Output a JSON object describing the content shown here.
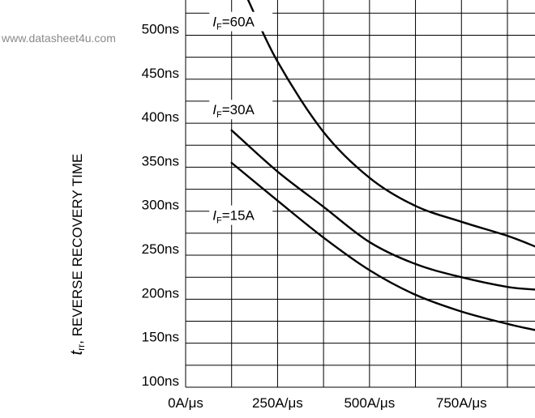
{
  "watermark": "www.datasheet4u.com",
  "chart_data": {
    "type": "line",
    "title": "",
    "ylabel": {
      "symbol": "t",
      "subscript": "rr",
      "text": ", REVERSE RECOVERY TIME"
    },
    "xlabel": "",
    "ylim": [
      100,
      540
    ],
    "xlim": [
      0,
      950
    ],
    "y_ticks": [
      {
        "value": 100,
        "label": "100ns"
      },
      {
        "value": 150,
        "label": "150ns"
      },
      {
        "value": 200,
        "label": "200ns"
      },
      {
        "value": 250,
        "label": "250ns"
      },
      {
        "value": 300,
        "label": "300ns"
      },
      {
        "value": 350,
        "label": "350ns"
      },
      {
        "value": 400,
        "label": "400ns"
      },
      {
        "value": 450,
        "label": "450ns"
      },
      {
        "value": 500,
        "label": "500ns"
      }
    ],
    "x_ticks": [
      {
        "value": 0,
        "label": "0A/μs"
      },
      {
        "value": 250,
        "label": "250A/μs"
      },
      {
        "value": 500,
        "label": "500A/μs"
      },
      {
        "value": 750,
        "label": "750A/μs"
      }
    ],
    "y_grid_step": 25,
    "x_grid_step": 125,
    "grid": true,
    "series": [
      {
        "name": "60A",
        "label_prefix": "I",
        "label_sub": "F",
        "label_eq": "=60A",
        "label_anchor": {
          "x": 60,
          "y": 510
        },
        "points": [
          [
            170,
            540
          ],
          [
            250,
            470
          ],
          [
            375,
            390
          ],
          [
            500,
            338
          ],
          [
            625,
            306
          ],
          [
            750,
            288
          ],
          [
            875,
            272
          ],
          [
            950,
            260
          ]
        ]
      },
      {
        "name": "30A",
        "label_prefix": "I",
        "label_sub": "F",
        "label_eq": "=30A",
        "label_anchor": {
          "x": 60,
          "y": 410
        },
        "points": [
          [
            125,
            392
          ],
          [
            250,
            345
          ],
          [
            375,
            305
          ],
          [
            500,
            265
          ],
          [
            625,
            240
          ],
          [
            750,
            225
          ],
          [
            875,
            214
          ],
          [
            950,
            211
          ]
        ]
      },
      {
        "name": "15A",
        "label_prefix": "I",
        "label_sub": "F",
        "label_eq": "=15A",
        "label_anchor": {
          "x": 60,
          "y": 290
        },
        "points": [
          [
            125,
            355
          ],
          [
            250,
            312
          ],
          [
            375,
            270
          ],
          [
            500,
            233
          ],
          [
            625,
            205
          ],
          [
            750,
            186
          ],
          [
            875,
            172
          ],
          [
            950,
            165
          ]
        ]
      }
    ]
  }
}
